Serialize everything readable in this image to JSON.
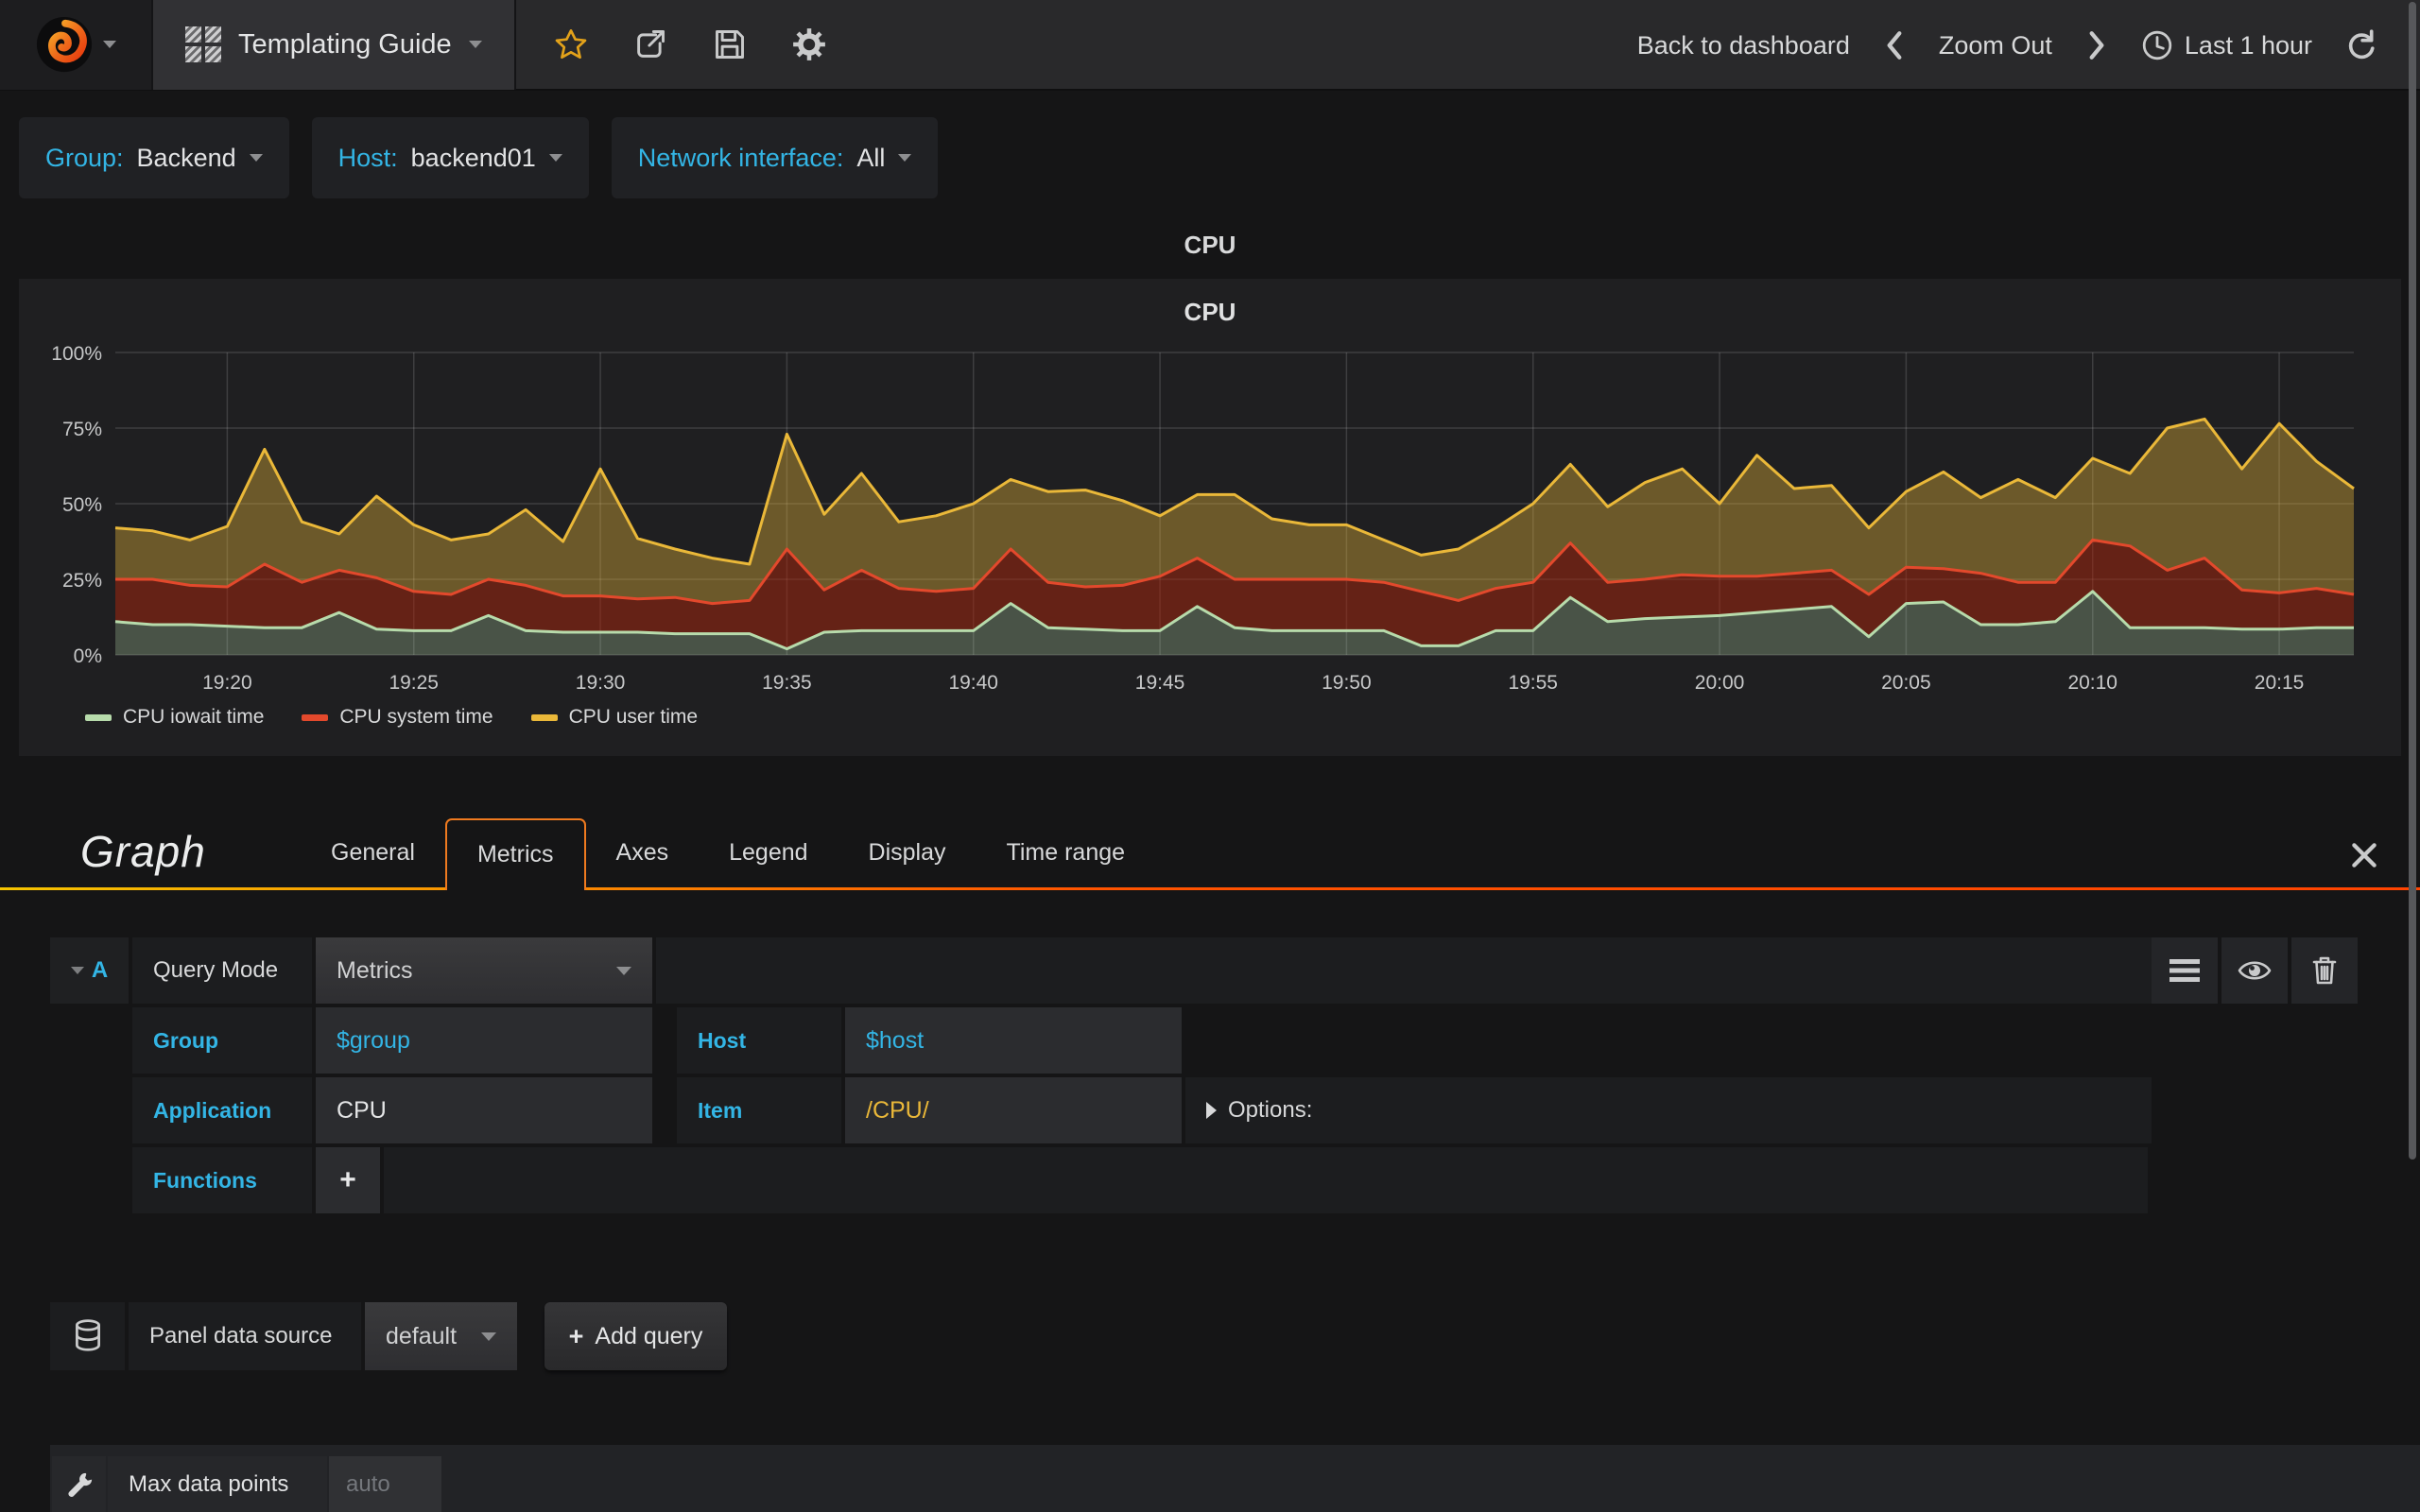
{
  "navbar": {
    "title": "Templating Guide",
    "back_to_dashboard": "Back to dashboard",
    "zoom_out": "Zoom Out",
    "time_range": "Last 1 hour"
  },
  "variables": [
    {
      "label": "Group:",
      "value": "Backend"
    },
    {
      "label": "Host:",
      "value": "backend01"
    },
    {
      "label": "Network interface:",
      "value": "All"
    }
  ],
  "row_title": "CPU",
  "panel": {
    "title": "CPU"
  },
  "chart_data": {
    "type": "area",
    "stacked": true,
    "title": "CPU",
    "ylabel": "percent",
    "ylim": [
      0,
      100
    ],
    "yticks": [
      "0%",
      "25%",
      "50%",
      "75%",
      "100%"
    ],
    "x_start": "19:17",
    "x_end": "20:17",
    "x_step_minutes": 1,
    "xticks": [
      "19:20",
      "19:25",
      "19:30",
      "19:35",
      "19:40",
      "19:45",
      "19:50",
      "19:55",
      "20:00",
      "20:05",
      "20:10",
      "20:15"
    ],
    "grid": true,
    "legend_position": "bottom-left",
    "series": [
      {
        "name": "CPU iowait time",
        "color": "#b7dbab",
        "fill": "rgba(183,219,171,0.28)",
        "values": [
          11,
          10,
          10,
          9.5,
          9,
          9,
          14,
          8.5,
          8,
          8,
          13,
          8,
          7.5,
          7.5,
          7.5,
          7,
          7,
          7,
          2,
          7.5,
          8,
          8,
          8,
          8,
          17,
          9,
          8.5,
          8,
          8,
          16,
          9,
          8,
          8,
          8,
          8,
          3,
          3,
          8,
          8,
          19,
          11,
          12,
          12.5,
          13,
          14,
          15,
          16,
          6,
          17,
          17.5,
          10,
          10,
          11,
          21,
          9,
          9,
          9,
          8.5,
          8.5,
          9,
          9
        ]
      },
      {
        "name": "CPU system time",
        "color": "#e3492c",
        "fill": "rgba(166,38,13,0.52)",
        "values": [
          14,
          15,
          13,
          13,
          21,
          15,
          14,
          17,
          13,
          12,
          12,
          15,
          12,
          12,
          11,
          12,
          10,
          11,
          33,
          14,
          20,
          14,
          13,
          14,
          18,
          15,
          14,
          15,
          18,
          16,
          16,
          17,
          17,
          17,
          16,
          18,
          15,
          14,
          16,
          18,
          13,
          13,
          14,
          13,
          12,
          12,
          12,
          14,
          12,
          11,
          17,
          14,
          13,
          17,
          27,
          19,
          23,
          13,
          12,
          13,
          11
        ]
      },
      {
        "name": "CPU user time",
        "color": "#eab839",
        "fill": "rgba(234,184,57,0.38)",
        "values": [
          17,
          16,
          15,
          20,
          38,
          20,
          12,
          27,
          22,
          18,
          15,
          25,
          18,
          42,
          20,
          16,
          15,
          12,
          38,
          25,
          32,
          22,
          25,
          28,
          23,
          30,
          32,
          28,
          20,
          21,
          28,
          20,
          18,
          18,
          14,
          12,
          17,
          20,
          26,
          26,
          25,
          32,
          35,
          24,
          40,
          28,
          28,
          22,
          25,
          32,
          25,
          34,
          28,
          27,
          24,
          47,
          46,
          40,
          56,
          42,
          35
        ]
      }
    ]
  },
  "editor": {
    "panel_type_label": "Graph",
    "tabs": [
      "General",
      "Metrics",
      "Axes",
      "Legend",
      "Display",
      "Time range"
    ],
    "active_tab": "Metrics",
    "query": {
      "ref_id": "A",
      "query_mode_label": "Query Mode",
      "query_mode_value": "Metrics",
      "group_label": "Group",
      "group_value": "$group",
      "host_label": "Host",
      "host_value": "$host",
      "application_label": "Application",
      "application_value": "CPU",
      "item_label": "Item",
      "item_value": "/CPU/",
      "options_label": "Options:",
      "functions_label": "Functions",
      "add_function": "+"
    },
    "datasource": {
      "label": "Panel data source",
      "value": "default",
      "plus": "+",
      "add_query": "Add query"
    },
    "max_data_points": {
      "label": "Max data points",
      "placeholder": "auto"
    }
  }
}
